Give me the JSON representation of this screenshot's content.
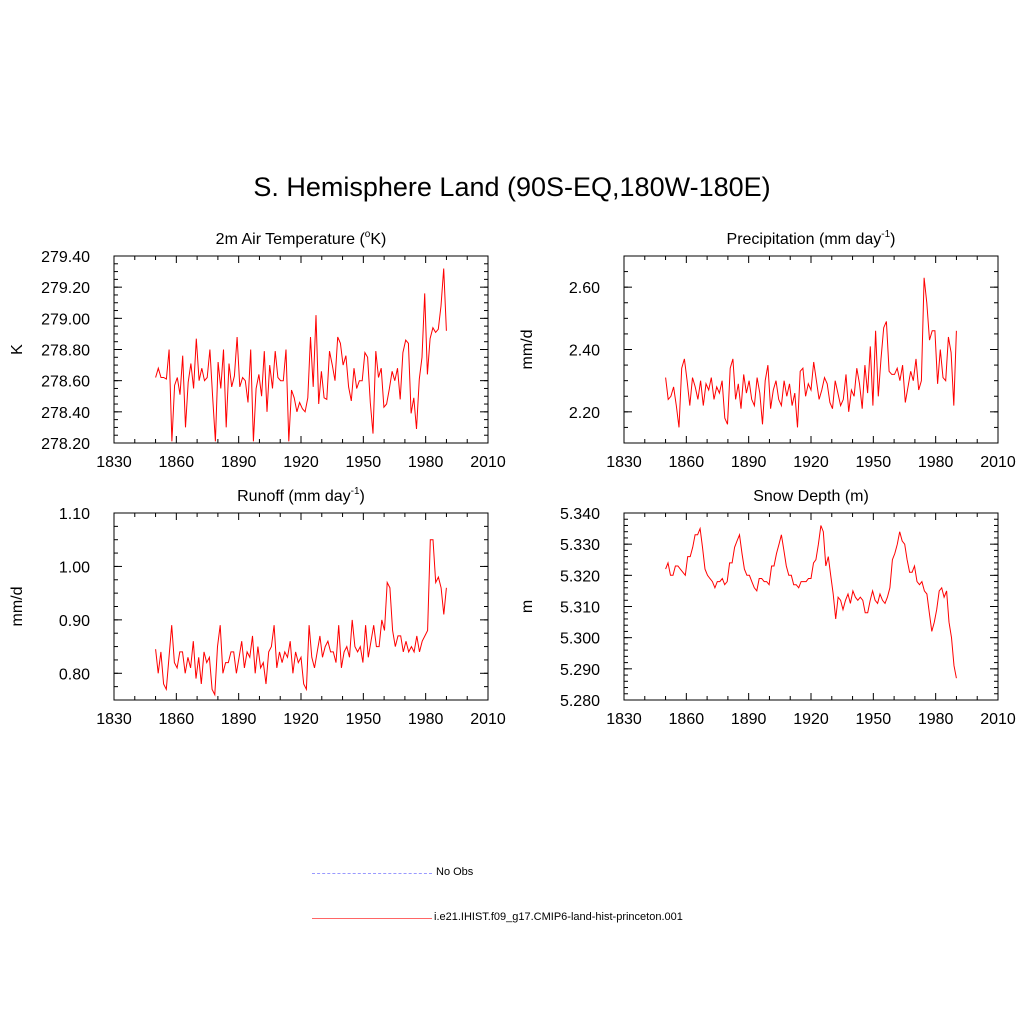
{
  "title": "S. Hemisphere Land (90S-EQ,180W-180E)",
  "legend": [
    {
      "label": "No Obs",
      "color": "#9999ff",
      "dash": true
    },
    {
      "label": "i.e21.IHIST.f09_g17.CMIP6-land-hist-princeton.001",
      "color": "#ff4444",
      "dash": false
    }
  ],
  "chart_data": [
    {
      "type": "line",
      "title_main": "2m Air Temperature (",
      "title_sup1": "o",
      "title_mid": "K)",
      "title_sup2": "",
      "title_end": "",
      "ylabel": "K",
      "xlim": [
        1830,
        2010
      ],
      "ylim": [
        278.2,
        279.4
      ],
      "xticks": [
        1830,
        1860,
        1890,
        1920,
        1950,
        1980,
        2010
      ],
      "yticks": [
        278.2,
        278.4,
        278.6,
        278.8,
        279.0,
        279.2,
        279.4
      ],
      "ytick_labels": [
        "278.20",
        "278.40",
        "278.60",
        "278.80",
        "279.00",
        "279.20",
        "279.40"
      ],
      "x_start": 1850,
      "color": "#ff0000",
      "values": [
        278.62,
        278.68,
        278.62,
        278.62,
        278.61,
        278.8,
        278.21,
        278.57,
        278.62,
        278.51,
        278.76,
        278.3,
        278.59,
        278.71,
        278.55,
        278.87,
        278.6,
        278.68,
        278.6,
        278.62,
        278.8,
        278.5,
        278.21,
        278.72,
        278.55,
        278.8,
        278.3,
        278.71,
        278.56,
        278.63,
        278.88,
        278.56,
        278.62,
        278.6,
        278.46,
        278.8,
        278.21,
        278.55,
        278.64,
        278.5,
        278.79,
        278.4,
        278.7,
        278.55,
        278.79,
        278.62,
        278.6,
        278.6,
        278.8,
        278.21,
        278.54,
        278.49,
        278.4,
        278.46,
        278.42,
        278.4,
        278.49,
        278.88,
        278.56,
        279.02,
        278.45,
        278.66,
        278.49,
        278.48,
        278.79,
        278.7,
        278.6,
        278.88,
        278.84,
        278.7,
        278.76,
        278.56,
        278.47,
        278.68,
        278.55,
        278.6,
        278.6,
        278.78,
        278.75,
        278.46,
        278.26,
        278.79,
        278.62,
        278.68,
        278.43,
        278.45,
        278.55,
        278.66,
        278.6,
        278.68,
        278.48,
        278.78,
        278.86,
        278.84,
        278.39,
        278.49,
        278.29,
        278.61,
        278.75,
        279.16,
        278.64,
        278.87,
        278.94,
        278.91,
        278.93,
        279.08,
        279.32,
        278.92
      ]
    },
    {
      "type": "line",
      "title_main": "Precipitation (mm day",
      "title_sup1": "-1",
      "title_mid": ")",
      "title_sup2": "",
      "title_end": "",
      "ylabel": "mm/d",
      "xlim": [
        1830,
        2010
      ],
      "ylim": [
        2.1,
        2.7
      ],
      "xticks": [
        1830,
        1860,
        1890,
        1920,
        1950,
        1980,
        2010
      ],
      "yticks": [
        2.2,
        2.4,
        2.6
      ],
      "ytick_labels": [
        "2.20",
        "2.40",
        "2.60"
      ],
      "minor_y_step": 0.05,
      "x_start": 1850,
      "color": "#ff0000",
      "values": [
        2.31,
        2.24,
        2.25,
        2.28,
        2.22,
        2.15,
        2.34,
        2.37,
        2.3,
        2.22,
        2.31,
        2.28,
        2.24,
        2.3,
        2.22,
        2.29,
        2.27,
        2.31,
        2.24,
        2.28,
        2.26,
        2.3,
        2.18,
        2.16,
        2.34,
        2.37,
        2.24,
        2.29,
        2.21,
        2.32,
        2.26,
        2.3,
        2.24,
        2.22,
        2.31,
        2.26,
        2.16,
        2.3,
        2.35,
        2.21,
        2.27,
        2.3,
        2.24,
        2.22,
        2.3,
        2.25,
        2.29,
        2.22,
        2.26,
        2.15,
        2.33,
        2.34,
        2.25,
        2.29,
        2.27,
        2.36,
        2.3,
        2.24,
        2.27,
        2.31,
        2.29,
        2.23,
        2.21,
        2.3,
        2.26,
        2.22,
        2.24,
        2.32,
        2.2,
        2.27,
        2.25,
        2.34,
        2.29,
        2.21,
        2.35,
        2.26,
        2.41,
        2.22,
        2.46,
        2.25,
        2.37,
        2.47,
        2.49,
        2.33,
        2.32,
        2.32,
        2.34,
        2.3,
        2.35,
        2.23,
        2.28,
        2.33,
        2.3,
        2.37,
        2.27,
        2.3,
        2.63,
        2.55,
        2.43,
        2.46,
        2.46,
        2.29,
        2.4,
        2.31,
        2.3,
        2.44,
        2.39,
        2.22,
        2.46
      ]
    },
    {
      "type": "line",
      "title_main": "Runoff (mm day",
      "title_sup1": "-1",
      "title_mid": ")",
      "title_sup2": "",
      "title_end": "",
      "ylabel": "mm/d",
      "xlim": [
        1830,
        2010
      ],
      "ylim": [
        0.75,
        1.1
      ],
      "xticks": [
        1830,
        1860,
        1890,
        1920,
        1950,
        1980,
        2010
      ],
      "yticks": [
        0.8,
        0.9,
        1.0,
        1.1
      ],
      "ytick_labels": [
        "0.80",
        "0.90",
        "1.00",
        "1.10"
      ],
      "minor_y_step": 0.025,
      "x_start": 1850,
      "color": "#ff0000",
      "values": [
        0.845,
        0.8,
        0.84,
        0.78,
        0.77,
        0.83,
        0.89,
        0.82,
        0.81,
        0.84,
        0.84,
        0.8,
        0.83,
        0.81,
        0.86,
        0.79,
        0.83,
        0.78,
        0.84,
        0.82,
        0.83,
        0.77,
        0.76,
        0.85,
        0.89,
        0.8,
        0.82,
        0.82,
        0.84,
        0.84,
        0.8,
        0.83,
        0.86,
        0.81,
        0.84,
        0.83,
        0.87,
        0.8,
        0.85,
        0.81,
        0.82,
        0.78,
        0.84,
        0.85,
        0.89,
        0.81,
        0.84,
        0.82,
        0.84,
        0.83,
        0.86,
        0.8,
        0.84,
        0.82,
        0.83,
        0.78,
        0.77,
        0.89,
        0.83,
        0.81,
        0.84,
        0.87,
        0.83,
        0.85,
        0.86,
        0.84,
        0.84,
        0.82,
        0.89,
        0.81,
        0.84,
        0.85,
        0.83,
        0.9,
        0.85,
        0.84,
        0.85,
        0.82,
        0.89,
        0.83,
        0.86,
        0.89,
        0.85,
        0.85,
        0.9,
        0.88,
        0.97,
        0.96,
        0.88,
        0.85,
        0.87,
        0.87,
        0.84,
        0.86,
        0.84,
        0.85,
        0.84,
        0.87,
        0.84,
        0.86,
        0.87,
        0.88,
        1.05,
        1.05,
        0.97,
        0.98,
        0.96,
        0.91,
        0.96
      ]
    },
    {
      "type": "line",
      "title_main": "Snow Depth (m)",
      "title_sup1": "",
      "title_mid": "",
      "title_sup2": "",
      "title_end": "",
      "ylabel": "m",
      "xlim": [
        1830,
        2010
      ],
      "ylim": [
        5.28,
        5.34
      ],
      "xticks": [
        1830,
        1860,
        1890,
        1920,
        1950,
        1980,
        2010
      ],
      "yticks": [
        5.28,
        5.29,
        5.3,
        5.31,
        5.32,
        5.33,
        5.34
      ],
      "ytick_labels": [
        "5.280",
        "5.290",
        "5.300",
        "5.310",
        "5.320",
        "5.330",
        "5.340"
      ],
      "minor_y_step": 0.002,
      "x_start": 1850,
      "color": "#ff0000",
      "values": [
        5.322,
        5.324,
        5.32,
        5.32,
        5.323,
        5.323,
        5.322,
        5.321,
        5.32,
        5.326,
        5.326,
        5.329,
        5.333,
        5.333,
        5.335,
        5.329,
        5.322,
        5.32,
        5.319,
        5.318,
        5.316,
        5.318,
        5.318,
        5.319,
        5.317,
        5.318,
        5.324,
        5.324,
        5.329,
        5.331,
        5.333,
        5.327,
        5.322,
        5.32,
        5.32,
        5.318,
        5.316,
        5.315,
        5.319,
        5.319,
        5.318,
        5.318,
        5.317,
        5.323,
        5.323,
        5.327,
        5.33,
        5.333,
        5.328,
        5.323,
        5.32,
        5.32,
        5.317,
        5.317,
        5.316,
        5.318,
        5.318,
        5.318,
        5.319,
        5.319,
        5.324,
        5.325,
        5.33,
        5.336,
        5.334,
        5.323,
        5.326,
        5.32,
        5.314,
        5.306,
        5.313,
        5.312,
        5.309,
        5.312,
        5.314,
        5.311,
        5.315,
        5.313,
        5.312,
        5.313,
        5.312,
        5.308,
        5.308,
        5.312,
        5.315,
        5.312,
        5.311,
        5.314,
        5.312,
        5.311,
        5.313,
        5.316,
        5.325,
        5.327,
        5.33,
        5.334,
        5.331,
        5.33,
        5.325,
        5.321,
        5.321,
        5.323,
        5.318,
        5.317,
        5.318,
        5.315,
        5.314,
        5.308,
        5.302,
        5.305,
        5.309,
        5.315,
        5.316,
        5.313,
        5.315,
        5.305,
        5.3,
        5.291,
        5.287
      ]
    }
  ]
}
